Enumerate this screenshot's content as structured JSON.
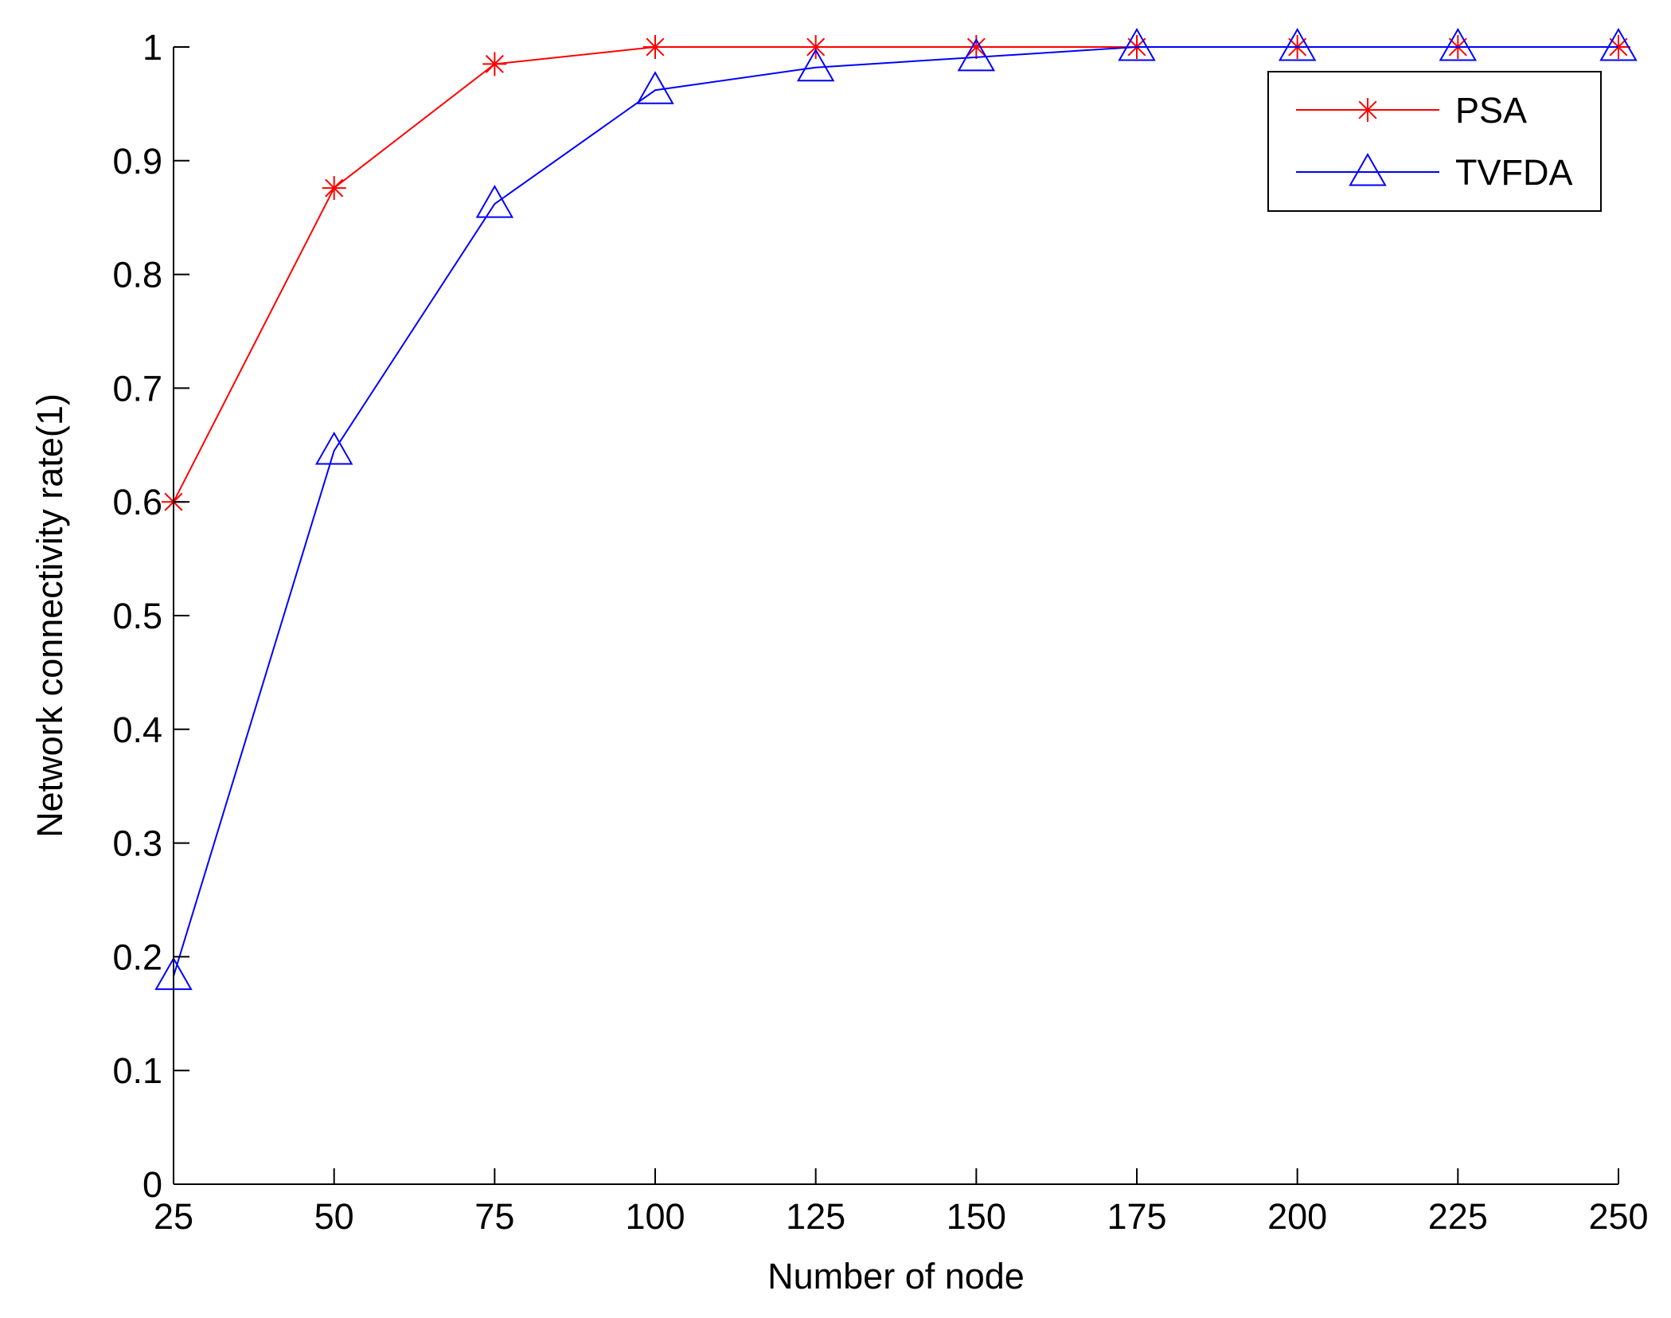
{
  "chart_data": {
    "type": "line",
    "title": "",
    "xlabel": "Number of node",
    "ylabel": "Network connectivity rate(1)",
    "x": [
      25,
      50,
      75,
      100,
      125,
      150,
      175,
      200,
      225,
      250
    ],
    "xlim": [
      25,
      250
    ],
    "ylim": [
      0,
      1
    ],
    "xticks": [
      25,
      50,
      75,
      100,
      125,
      150,
      175,
      200,
      225,
      250
    ],
    "yticks": [
      0,
      0.1,
      0.2,
      0.3,
      0.4,
      0.5,
      0.6,
      0.7,
      0.8,
      0.9,
      1
    ],
    "xtick_labels": [
      "25",
      "50",
      "75",
      "100",
      "125",
      "150",
      "175",
      "200",
      "225",
      "250"
    ],
    "ytick_labels": [
      "0",
      "0.1",
      "0.2",
      "0.3",
      "0.4",
      "0.5",
      "0.6",
      "0.7",
      "0.8",
      "0.9",
      "1"
    ],
    "grid": false,
    "legend_position": "top-right",
    "series": [
      {
        "name": "PSA",
        "color": "#ff0000",
        "marker": "asterisk",
        "values": [
          0.6,
          0.876,
          0.985,
          1.0,
          1.0,
          1.0,
          1.0,
          1.0,
          1.0,
          1.0
        ]
      },
      {
        "name": "TVFDA",
        "color": "#0000ff",
        "marker": "triangle",
        "values": [
          0.183,
          0.645,
          0.862,
          0.962,
          0.982,
          0.991,
          1.0,
          1.0,
          1.0,
          1.0
        ]
      }
    ]
  }
}
